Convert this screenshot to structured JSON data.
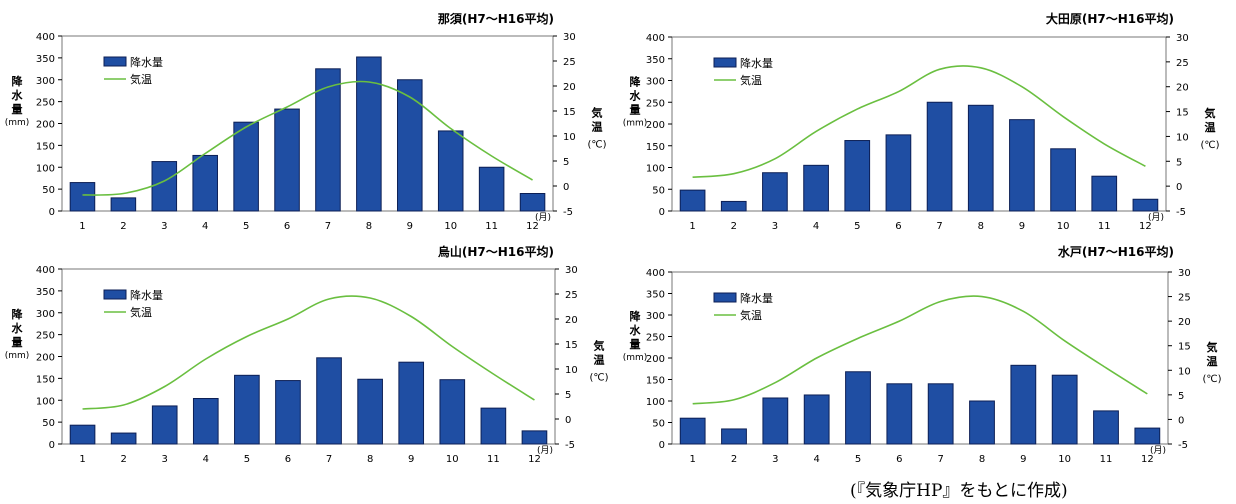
{
  "chart_data": [
    {
      "type": "bar",
      "title": "那須(H7〜H16平均)",
      "categories": [
        "1",
        "2",
        "3",
        "4",
        "5",
        "6",
        "7",
        "8",
        "9",
        "10",
        "11",
        "12"
      ],
      "x_unit": "(月)",
      "ylabel_left": "降水量",
      "ylabel_left_unit": "(mm)",
      "ylabel_right": "気温",
      "ylabel_right_unit": "(℃)",
      "y_left_lim": [
        0,
        400
      ],
      "y_left_ticks": [
        "0",
        "50",
        "100",
        "150",
        "200",
        "250",
        "300",
        "350",
        "400"
      ],
      "y_right_lim": [
        -5,
        30
      ],
      "y_right_ticks": [
        "-5",
        "0",
        "5",
        "10",
        "15",
        "20",
        "25",
        "30"
      ],
      "legend_position": "top-left",
      "series": [
        {
          "name": "降水量",
          "type": "bar",
          "axis": "left",
          "values": [
            65,
            30,
            113,
            127,
            203,
            233,
            325,
            352,
            300,
            183,
            100,
            40
          ]
        },
        {
          "name": "気温",
          "type": "line",
          "axis": "right",
          "values": [
            -1.8,
            -1.5,
            1.0,
            6.5,
            11.8,
            15.8,
            19.8,
            20.8,
            17.8,
            11.5,
            6.0,
            1.2
          ]
        }
      ]
    },
    {
      "type": "bar",
      "title": "大田原(H7〜H16平均)",
      "categories": [
        "1",
        "2",
        "3",
        "4",
        "5",
        "6",
        "7",
        "8",
        "9",
        "10",
        "11",
        "12"
      ],
      "x_unit": "(月)",
      "ylabel_left": "降水量",
      "ylabel_left_unit": "(mm)",
      "ylabel_right": "気温",
      "ylabel_right_unit": "(℃)",
      "y_left_lim": [
        0,
        400
      ],
      "y_left_ticks": [
        "0",
        "50",
        "100",
        "150",
        "200",
        "250",
        "300",
        "350",
        "400"
      ],
      "y_right_lim": [
        -5,
        30
      ],
      "y_right_ticks": [
        "-5",
        "0",
        "5",
        "10",
        "15",
        "20",
        "25",
        "30"
      ],
      "legend_position": "top-left",
      "series": [
        {
          "name": "降水量",
          "type": "bar",
          "axis": "left",
          "values": [
            48,
            22,
            88,
            105,
            162,
            175,
            250,
            243,
            210,
            143,
            80,
            27
          ]
        },
        {
          "name": "気温",
          "type": "line",
          "axis": "right",
          "values": [
            1.8,
            2.5,
            5.5,
            11.0,
            15.5,
            19.0,
            23.5,
            23.8,
            20.0,
            14.0,
            8.5,
            4.0
          ]
        }
      ]
    },
    {
      "type": "bar",
      "title": "烏山(H7〜H16平均)",
      "categories": [
        "1",
        "2",
        "3",
        "4",
        "5",
        "6",
        "7",
        "8",
        "9",
        "10",
        "11",
        "12"
      ],
      "x_unit": "(月)",
      "ylabel_left": "降水量",
      "ylabel_left_unit": "(mm)",
      "ylabel_right": "気温",
      "ylabel_right_unit": "(℃)",
      "y_left_lim": [
        0,
        400
      ],
      "y_left_ticks": [
        "0",
        "50",
        "100",
        "150",
        "200",
        "250",
        "300",
        "350",
        "400"
      ],
      "y_right_lim": [
        -5,
        30
      ],
      "y_right_ticks": [
        "-5",
        "0",
        "5",
        "10",
        "15",
        "20",
        "25",
        "30"
      ],
      "legend_position": "top-left",
      "series": [
        {
          "name": "降水量",
          "type": "bar",
          "axis": "left",
          "values": [
            43,
            25,
            87,
            104,
            157,
            145,
            197,
            148,
            187,
            147,
            82,
            30
          ]
        },
        {
          "name": "気温",
          "type": "line",
          "axis": "right",
          "values": [
            2.0,
            2.8,
            6.5,
            12.0,
            16.5,
            20.0,
            24.0,
            24.2,
            20.5,
            14.5,
            9.0,
            3.8
          ]
        }
      ]
    },
    {
      "type": "bar",
      "title": "水戸(H7〜H16平均)",
      "categories": [
        "1",
        "2",
        "3",
        "4",
        "5",
        "6",
        "7",
        "8",
        "9",
        "10",
        "11",
        "12"
      ],
      "x_unit": "(月)",
      "ylabel_left": "降水量",
      "ylabel_left_unit": "(mm)",
      "ylabel_right": "気温",
      "ylabel_right_unit": "(℃)",
      "y_left_lim": [
        0,
        400
      ],
      "y_left_ticks": [
        "0",
        "50",
        "100",
        "150",
        "200",
        "250",
        "300",
        "350",
        "400"
      ],
      "y_right_lim": [
        -5,
        30
      ],
      "y_right_ticks": [
        "-5",
        "0",
        "5",
        "10",
        "15",
        "20",
        "25",
        "30"
      ],
      "legend_position": "top-left",
      "series": [
        {
          "name": "降水量",
          "type": "bar",
          "axis": "left",
          "values": [
            60,
            35,
            107,
            114,
            168,
            140,
            140,
            100,
            183,
            160,
            77,
            37
          ]
        },
        {
          "name": "気温",
          "type": "line",
          "axis": "right",
          "values": [
            3.2,
            4.0,
            7.5,
            12.5,
            16.5,
            20.0,
            24.0,
            25.0,
            22.0,
            16.0,
            10.5,
            5.2
          ]
        }
      ]
    }
  ],
  "colors": {
    "bar_fill": "#1f4ea3",
    "bar_stroke": "#0c1f55",
    "line": "#6abf40",
    "axis": "#000000",
    "frame": "#777777"
  },
  "caption": "(『気象庁HP』をもとに作成)"
}
